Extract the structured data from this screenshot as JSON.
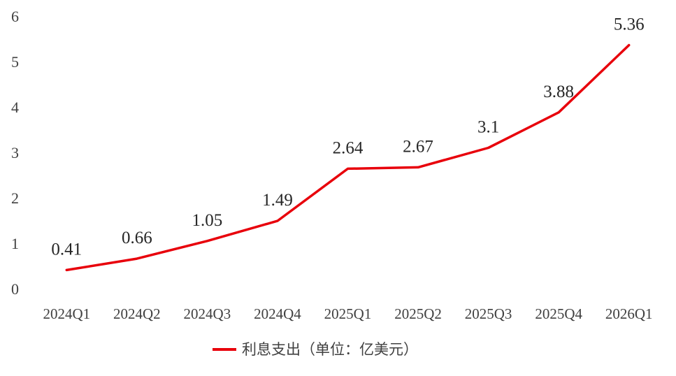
{
  "chart_data": {
    "type": "line",
    "title": "",
    "xlabel": "",
    "ylabel": "",
    "categories": [
      "2024Q1",
      "2024Q2",
      "2024Q3",
      "2024Q4",
      "2025Q1",
      "2025Q2",
      "2025Q3",
      "2025Q4",
      "2026Q1"
    ],
    "y_ticks": [
      "0",
      "1",
      "2",
      "3",
      "4",
      "5",
      "6"
    ],
    "ylim": [
      0,
      6
    ],
    "grid": false,
    "legend_position": "bottom",
    "series": [
      {
        "name": "利息支出（单位：亿美元）",
        "color": "#e8000b",
        "values": [
          0.41,
          0.66,
          1.05,
          1.49,
          2.64,
          2.67,
          3.1,
          3.88,
          5.36
        ],
        "labels": [
          "0.41",
          "0.66",
          "1.05",
          "1.49",
          "2.64",
          "2.67",
          "3.1",
          "3.88",
          "5.36"
        ]
      }
    ]
  }
}
